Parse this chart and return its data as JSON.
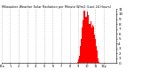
{
  "title": "Milwaukee Weather Solar Radiation per Minute W/m2 (Last 24 Hours)",
  "bar_color": "#ff0000",
  "background_color": "#ffffff",
  "grid_color": "#888888",
  "ylim": [
    0,
    11
  ],
  "yticks": [
    0,
    1,
    2,
    3,
    4,
    5,
    6,
    7,
    8,
    9,
    10,
    11
  ],
  "ytick_labels": [
    "0",
    "1",
    "2",
    "3",
    "4",
    "5",
    "6",
    "7",
    "8",
    "9",
    "10",
    "11"
  ],
  "num_bars": 288,
  "bar_values": [
    0,
    0,
    0,
    0,
    0,
    0,
    0,
    0,
    0,
    0,
    0,
    0,
    0,
    0,
    0,
    0,
    0,
    0,
    0,
    0,
    0,
    0,
    0,
    0,
    0,
    0,
    0,
    0,
    0,
    0,
    0,
    0,
    0,
    0,
    0,
    0,
    0,
    0,
    0,
    0,
    0,
    0,
    0,
    0,
    0,
    0,
    0,
    0,
    0,
    0,
    0,
    0,
    0,
    0,
    0,
    0,
    0,
    0,
    0,
    0,
    0,
    0,
    0,
    0,
    0,
    0,
    0,
    0,
    0,
    0,
    0,
    0,
    0,
    0,
    0,
    0,
    0,
    0,
    0,
    0,
    0,
    0,
    0,
    0,
    0,
    0,
    0,
    0,
    0,
    0,
    0,
    0,
    0,
    0,
    0,
    0,
    0,
    0,
    0,
    0,
    0,
    0,
    0,
    0,
    0,
    0,
    0,
    0,
    0,
    0,
    0,
    0,
    0,
    0,
    0,
    0,
    0,
    0,
    0,
    0,
    0,
    0,
    0,
    0,
    0,
    0,
    0,
    0,
    0,
    0,
    0,
    0,
    0,
    0,
    0,
    0,
    0,
    0,
    0,
    0,
    0,
    0,
    0,
    0,
    0,
    0,
    0,
    0,
    0,
    0,
    0,
    0,
    0,
    0,
    0,
    0,
    0,
    0,
    0,
    0,
    0,
    0,
    0,
    0,
    0,
    0,
    0,
    0,
    0,
    0,
    0,
    0,
    0,
    0,
    0,
    0,
    0,
    0,
    0,
    0,
    0,
    0,
    0,
    0,
    0,
    0,
    0,
    0,
    0,
    0,
    0,
    0,
    0,
    0,
    0,
    0,
    0,
    0,
    0,
    0,
    0,
    0,
    0,
    0,
    0,
    0,
    0,
    0,
    0,
    0,
    0,
    0,
    0.1,
    0.1,
    0.2,
    0.3,
    0.5,
    0.7,
    1.0,
    1.5,
    2.0,
    2.8,
    3.5,
    4.2,
    5.0,
    5.8,
    6.5,
    7.2,
    8.0,
    8.8,
    9.5,
    10.2,
    10.7,
    11.0,
    10.8,
    10.5,
    10.0,
    9.5,
    9.0,
    9.5,
    10.0,
    10.4,
    10.6,
    10.3,
    9.8,
    9.0,
    8.5,
    8.0,
    7.5,
    8.0,
    8.5,
    8.8,
    8.5,
    8.0,
    7.2,
    6.8,
    7.2,
    7.8,
    8.0,
    7.5,
    6.8,
    6.2,
    5.8,
    5.5,
    5.0,
    4.5,
    4.0,
    3.5,
    3.0,
    2.5,
    2.0,
    1.5,
    1.0,
    0.6,
    0.3,
    0.1,
    0,
    0,
    0,
    0,
    0,
    0,
    0,
    0,
    0,
    0,
    0,
    0,
    0,
    0,
    0,
    0,
    0,
    0,
    0,
    0,
    0,
    0,
    0,
    0,
    0,
    0,
    0,
    0,
    0,
    0,
    0,
    0,
    0,
    0,
    0,
    0,
    0,
    0,
    0,
    0,
    0,
    0,
    0,
    0,
    0,
    0,
    0,
    0
  ],
  "xlabel_indices": [
    0,
    24,
    48,
    72,
    96,
    120,
    144,
    168,
    192,
    216,
    240,
    264,
    287
  ],
  "xlabel_labels": [
    "12a",
    "1",
    "2",
    "3",
    "4",
    "5",
    "6",
    "7",
    "8",
    "9",
    "10",
    "11",
    "12p"
  ]
}
